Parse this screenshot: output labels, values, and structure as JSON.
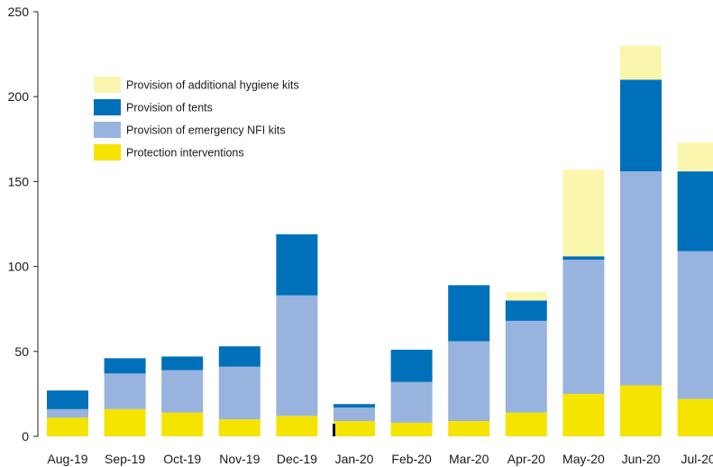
{
  "chart_data": {
    "type": "bar",
    "stacked": true,
    "categories": [
      "Aug-19",
      "Sep-19",
      "Oct-19",
      "Nov-19",
      "Dec-19",
      "Jan-20",
      "Feb-20",
      "Mar-20",
      "Apr-20",
      "May-20",
      "Jun-20",
      "Jul-20"
    ],
    "ylim": [
      0,
      250
    ],
    "yticks": [
      0,
      50,
      100,
      150,
      200,
      250
    ],
    "grid": false,
    "legend_position": "upper-left",
    "series": [
      {
        "name": "Protection interventions",
        "color": "#f5e400",
        "values": [
          11,
          16,
          14,
          10,
          12,
          9,
          8,
          9,
          14,
          25,
          30,
          22
        ]
      },
      {
        "name": "Provision of emergency NFI kits",
        "color": "#98b4de",
        "values": [
          5,
          21,
          25,
          31,
          71,
          8,
          24,
          47,
          54,
          79,
          126,
          87
        ]
      },
      {
        "name": "Provision of tents",
        "color": "#0070bb",
        "values": [
          11,
          9,
          8,
          12,
          36,
          2,
          19,
          33,
          12,
          2,
          54,
          47
        ]
      },
      {
        "name": "Provision of additional hygiene kits",
        "color": "#fbf6ae",
        "values": [
          0,
          0,
          0,
          0,
          0,
          0,
          0,
          0,
          5,
          51,
          20,
          17
        ]
      }
    ],
    "legend_order": [
      "Provision of additional hygiene kits",
      "Provision of tents",
      "Provision of emergency NFI kits",
      "Protection interventions"
    ],
    "ymark_under_category": "Jan-20"
  }
}
